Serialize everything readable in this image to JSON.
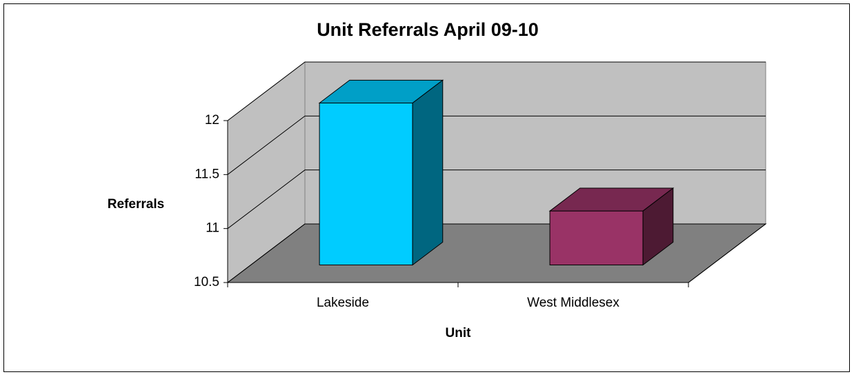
{
  "chart_data": {
    "type": "bar3d",
    "title": "Unit Referrals April 09-10",
    "x_label": "Unit",
    "y_label": "Referrals",
    "categories": [
      "Lakeside",
      "West Middlesex"
    ],
    "values": [
      12,
      11
    ],
    "colors": [
      "#00ccff",
      "#993366"
    ],
    "ylim": [
      10.5,
      12
    ],
    "yticks": [
      10.5,
      11,
      11.5,
      12
    ],
    "grid": true
  }
}
